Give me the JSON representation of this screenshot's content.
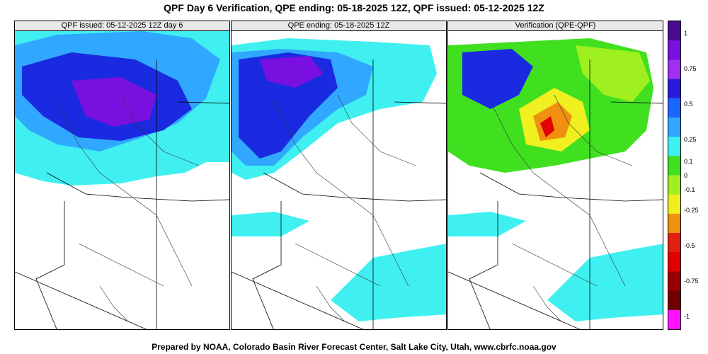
{
  "title": "QPF Day 6 Verification, QPE ending: 05-18-2025 12Z, QPF issued: 05-12-2025 12Z",
  "panels": [
    {
      "label": "QPF issued: 05-12-2025 12Z day 6"
    },
    {
      "label": "QPE ending: 05-18-2025 12Z"
    },
    {
      "label": "Verification (QPE-QPF)"
    }
  ],
  "legend": {
    "ticks": [
      "1",
      "0.75",
      "0.5",
      "0.25",
      "0.1",
      "0",
      "-0.1",
      "-0.25",
      "-0.5",
      "-0.75",
      "-1"
    ],
    "colors": [
      "#4a0a90",
      "#7a10e0",
      "#a030f0",
      "#2a1ae0",
      "#1a66ff",
      "#30a8ff",
      "#40f0f0",
      "#40e020",
      "#a0f020",
      "#f0f020",
      "#f09010",
      "#e02010",
      "#e00000",
      "#9a0000",
      "#700000",
      "#ff10ff"
    ]
  },
  "footer": "Prepared by NOAA, Colorado Basin River Forecast Center, Salt Lake City, Utah, www.cbrfc.noaa.gov"
}
